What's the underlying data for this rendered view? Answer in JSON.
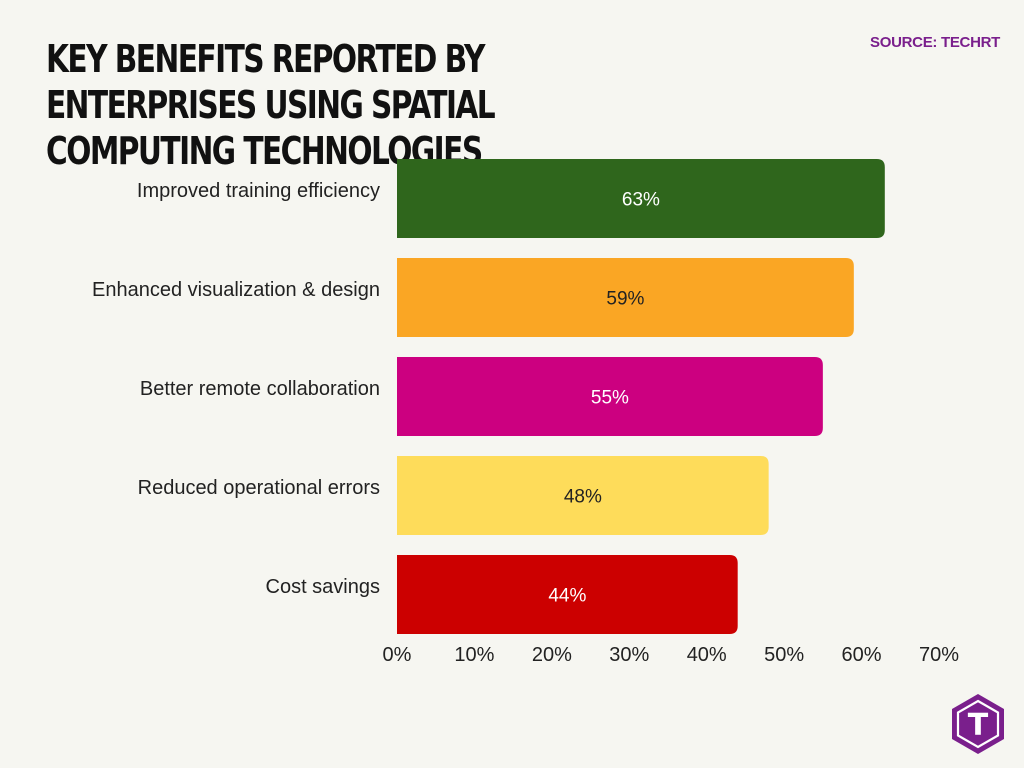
{
  "header": {
    "title": "KEY BENEFITS REPORTED BY ENTERPRISES USING SPATIAL COMPUTING TECHNOLOGIES",
    "source": "SOURCE: TECHRT"
  },
  "logo": {
    "icon": "techrt-logo-icon",
    "letter": "T",
    "color": "#7a1f8c"
  },
  "chart_data": {
    "type": "bar",
    "orientation": "horizontal",
    "title": "KEY BENEFITS REPORTED BY ENTERPRISES USING SPATIAL COMPUTING TECHNOLOGIES",
    "categories": [
      "Improved training efficiency",
      "Enhanced visualization & design",
      "Better remote collaboration",
      "Reduced operational errors",
      "Cost savings"
    ],
    "values": [
      63,
      59,
      55,
      48,
      44
    ],
    "value_labels": [
      "63%",
      "59%",
      "55%",
      "48%",
      "44%"
    ],
    "colors": [
      "#2f661c",
      "#faa624",
      "#cc0080",
      "#fedc5a",
      "#cc0000"
    ],
    "label_colors": [
      "#ffffff",
      "#222222",
      "#ffffff",
      "#222222",
      "#ffffff"
    ],
    "xlim": [
      0,
      70
    ],
    "xticks": [
      0,
      10,
      20,
      30,
      40,
      50,
      60,
      70
    ],
    "xtick_labels": [
      "0%",
      "10%",
      "20%",
      "30%",
      "40%",
      "50%",
      "60%",
      "70%"
    ],
    "grid": false,
    "legend": "none",
    "xlabel": "",
    "ylabel": ""
  }
}
